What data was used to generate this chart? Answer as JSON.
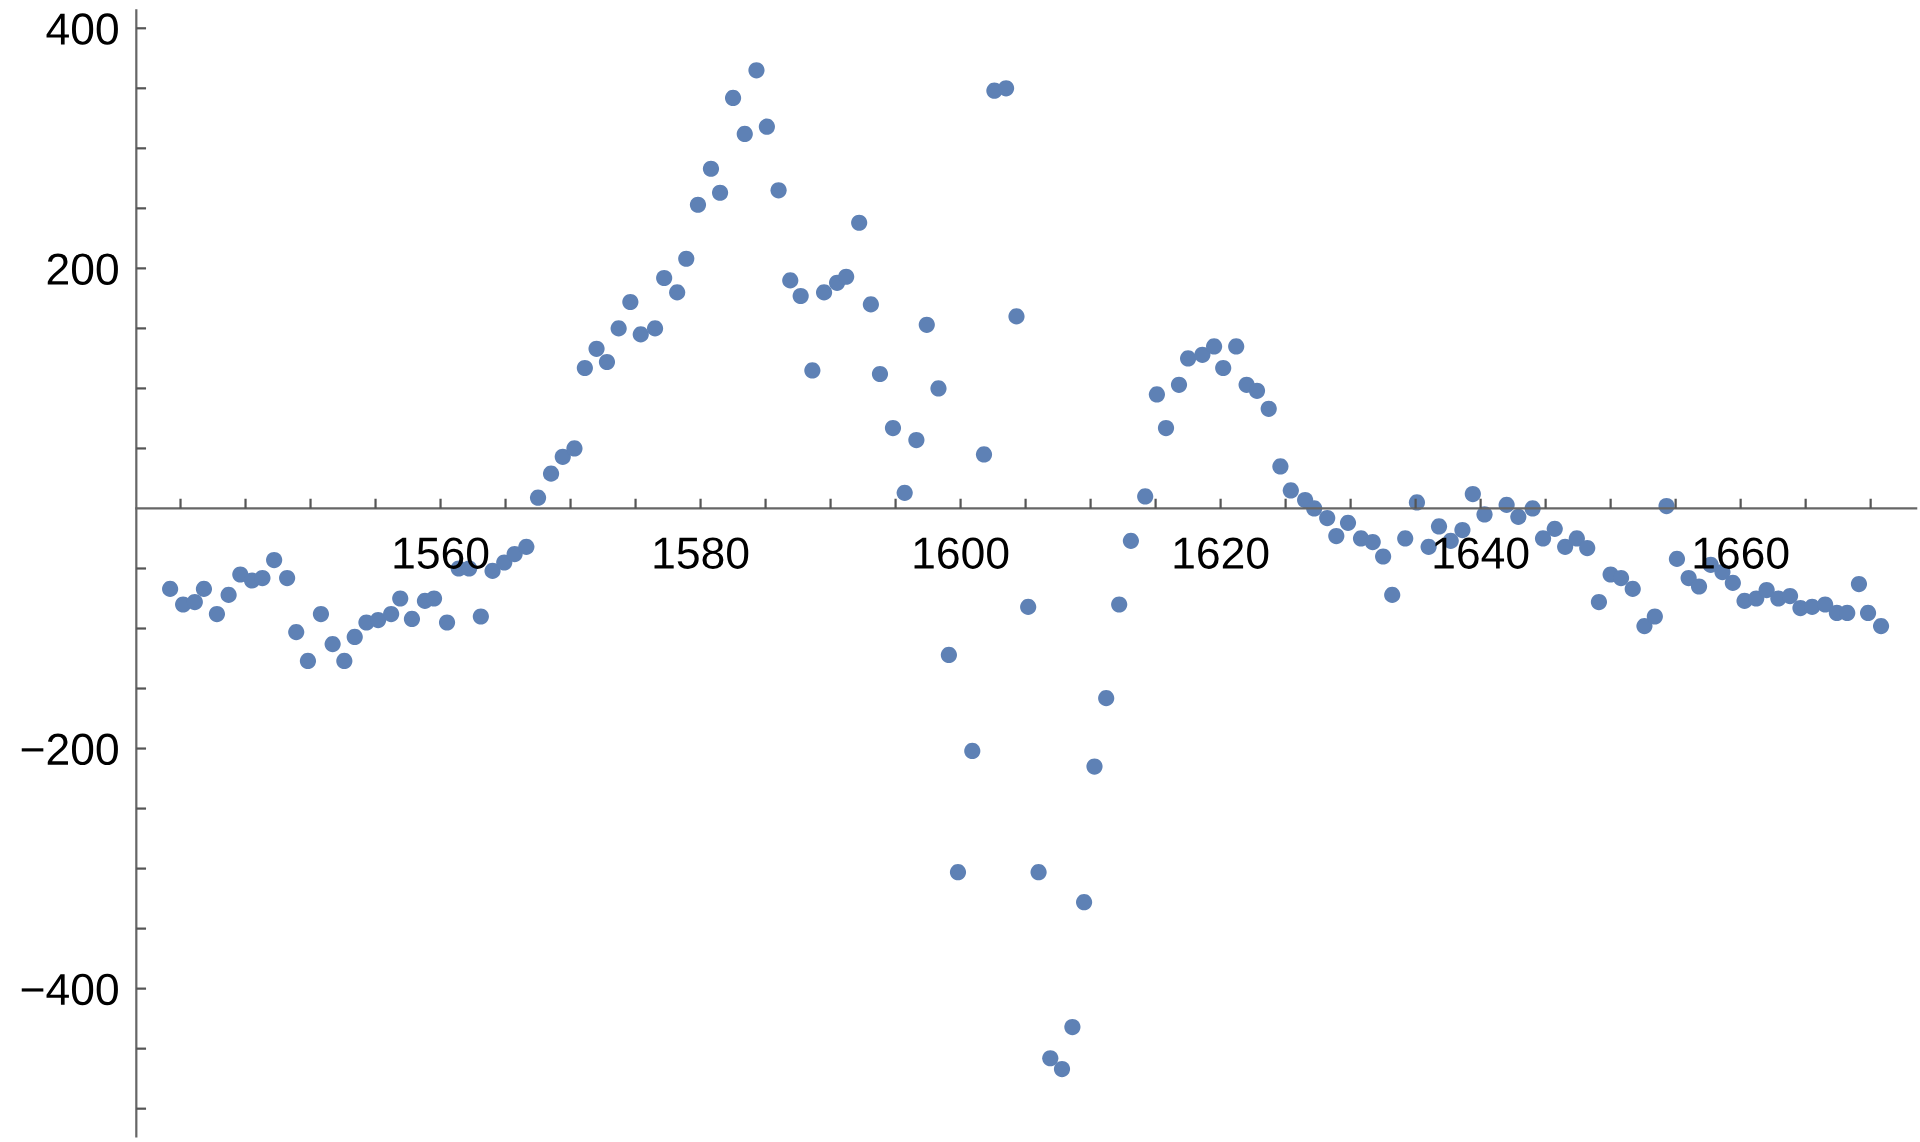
{
  "chart_data": {
    "type": "scatter",
    "marker": "circle",
    "grid": false,
    "legend": false,
    "xlim": [
      1536.6,
      1673.5
    ],
    "ylim": [
      -523,
      415
    ],
    "xticks": [
      {
        "value": 1540,
        "label": null
      },
      {
        "value": 1545,
        "label": null
      },
      {
        "value": 1550,
        "label": null
      },
      {
        "value": 1555,
        "label": null
      },
      1560,
      {
        "value": 1565,
        "label": null
      },
      {
        "value": 1570,
        "label": null
      },
      {
        "value": 1575,
        "label": null
      },
      1580,
      {
        "value": 1585,
        "label": null
      },
      {
        "value": 1590,
        "label": null
      },
      {
        "value": 1595,
        "label": null
      },
      1600,
      {
        "value": 1605,
        "label": null
      },
      {
        "value": 1610,
        "label": null
      },
      {
        "value": 1615,
        "label": null
      },
      1620,
      {
        "value": 1625,
        "label": null
      },
      {
        "value": 1630,
        "label": null
      },
      {
        "value": 1635,
        "label": null
      },
      1640,
      {
        "value": 1645,
        "label": null
      },
      {
        "value": 1650,
        "label": null
      },
      {
        "value": 1655,
        "label": null
      },
      1660,
      {
        "value": 1665,
        "label": null
      },
      {
        "value": 1670,
        "label": null
      }
    ],
    "yticks": [
      {
        "value": -500,
        "label": null
      },
      {
        "value": -450,
        "label": null
      },
      {
        "value": -400,
        "label": "−400"
      },
      {
        "value": -350,
        "label": null
      },
      {
        "value": -300,
        "label": null
      },
      {
        "value": -250,
        "label": null
      },
      {
        "value": -200,
        "label": "−200"
      },
      {
        "value": -150,
        "label": null
      },
      {
        "value": -100,
        "label": null
      },
      {
        "value": -50,
        "label": null
      },
      {
        "value": 50,
        "label": null
      },
      {
        "value": 100,
        "label": null
      },
      {
        "value": 150,
        "label": null
      },
      200,
      {
        "value": 250,
        "label": null
      },
      {
        "value": 300,
        "label": null
      },
      {
        "value": 350,
        "label": null
      },
      400
    ],
    "series": [
      {
        "color": "#5e81b5",
        "x": [
          1539.2,
          1540.2,
          1541.1,
          1541.8,
          1542.8,
          1543.7,
          1544.6,
          1545.5,
          1546.3,
          1547.2,
          1548.2,
          1548.9,
          1549.8,
          1550.8,
          1551.7,
          1552.6,
          1553.4,
          1554.3,
          1555.2,
          1556.2,
          1556.9,
          1557.8,
          1558.8,
          1559.5,
          1560.5,
          1561.4,
          1562.2,
          1563.1,
          1564.0,
          1564.9,
          1565.7,
          1566.6,
          1567.5,
          1568.5,
          1569.4,
          1570.3,
          1571.1,
          1572.0,
          1572.8,
          1573.7,
          1574.6,
          1575.4,
          1576.5,
          1577.2,
          1578.2,
          1578.9,
          1579.8,
          1580.8,
          1581.5,
          1582.5,
          1583.4,
          1584.3,
          1585.1,
          1586.0,
          1586.9,
          1587.7,
          1588.6,
          1589.5,
          1590.5,
          1591.2,
          1592.2,
          1593.1,
          1593.8,
          1594.8,
          1595.7,
          1596.6,
          1597.4,
          1598.3,
          1599.1,
          1599.8,
          1600.9,
          1601.8,
          1602.6,
          1603.5,
          1604.3,
          1605.2,
          1606.0,
          1606.9,
          1607.8,
          1608.6,
          1609.5,
          1610.3,
          1611.2,
          1612.2,
          1613.1,
          1614.2,
          1615.1,
          1615.8,
          1616.8,
          1617.5,
          1618.6,
          1619.5,
          1620.2,
          1621.2,
          1622.0,
          1622.8,
          1623.7,
          1624.6,
          1625.4,
          1626.5,
          1627.2,
          1628.2,
          1628.9,
          1629.8,
          1630.8,
          1631.7,
          1632.5,
          1633.2,
          1634.2,
          1635.1,
          1636.0,
          1636.8,
          1637.7,
          1638.6,
          1639.4,
          1640.3,
          1642.0,
          1642.9,
          1644.0,
          1644.8,
          1645.7,
          1646.5,
          1647.4,
          1648.2,
          1649.1,
          1650.0,
          1650.8,
          1651.7,
          1652.6,
          1653.4,
          1654.3,
          1655.1,
          1656.0,
          1656.8,
          1657.7,
          1658.6,
          1659.4,
          1660.3,
          1661.2,
          1662.0,
          1662.9,
          1663.8,
          1664.6,
          1665.5,
          1666.5,
          1667.4,
          1668.2,
          1669.1,
          1669.8,
          1670.8
        ],
        "values": [
          -67,
          -80,
          -78,
          -67,
          -88,
          -72,
          -55,
          -60,
          -58,
          -43,
          -58,
          -103,
          -127,
          -88,
          -113,
          -127,
          -107,
          -95,
          -93,
          -88,
          -75,
          -92,
          -77,
          -75,
          -95,
          -50,
          -50,
          -90,
          -52,
          -45,
          -38,
          -32,
          9,
          29,
          43,
          50,
          117,
          133,
          122,
          150,
          172,
          145,
          150,
          192,
          180,
          208,
          253,
          283,
          263,
          342,
          312,
          365,
          318,
          265,
          190,
          177,
          115,
          180,
          188,
          193,
          238,
          170,
          112,
          67,
          13,
          57,
          153,
          100,
          -122,
          -303,
          -202,
          45,
          348,
          350,
          160,
          -82,
          -303,
          -458,
          -467,
          -432,
          -328,
          -215,
          -158,
          -80,
          -27,
          10,
          95,
          67,
          103,
          125,
          128,
          135,
          117,
          135,
          103,
          98,
          83,
          35,
          15,
          7,
          0,
          -8,
          -23,
          -12,
          -25,
          -28,
          -40,
          -72,
          -25,
          5,
          -32,
          -15,
          -27,
          -18,
          12,
          -5,
          3,
          -7,
          0,
          -25,
          -17,
          -32,
          -25,
          -33,
          -78,
          -55,
          -58,
          -67,
          -98,
          -90,
          2,
          -42,
          -58,
          -65,
          -47,
          -53,
          -62,
          -77,
          -75,
          -68,
          -75,
          -73,
          -83,
          -82,
          -80,
          -87,
          -87,
          -63,
          -87,
          -98
        ]
      }
    ]
  }
}
